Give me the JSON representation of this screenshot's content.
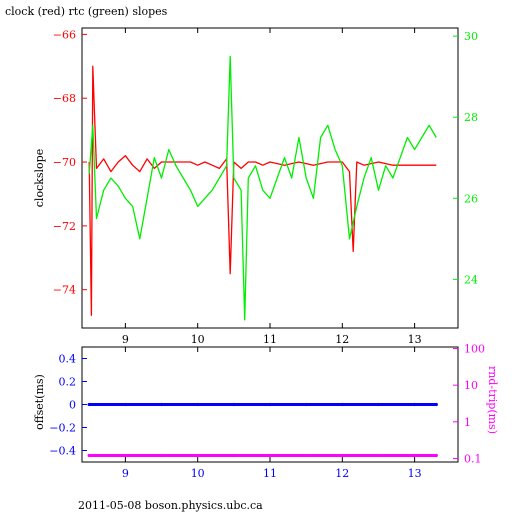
{
  "chart_data": [
    {
      "type": "line",
      "title": "clock (red) rtc (green) slopes",
      "ylabel": "clockslope",
      "xlim": [
        8.4,
        13.6
      ],
      "x_ticks": [
        9,
        10,
        11,
        12,
        13
      ],
      "y_left": {
        "range": [
          -75.2,
          -65.8
        ],
        "ticks": [
          -74,
          -72,
          -70,
          -68,
          -66
        ]
      },
      "y_right": {
        "range": [
          22.8,
          30.2
        ],
        "ticks": [
          24,
          26,
          28,
          30
        ]
      },
      "series": [
        {
          "name": "clock",
          "axis": "left",
          "color": "#ff0000",
          "x": [
            8.5,
            8.53,
            8.55,
            8.6,
            8.7,
            8.8,
            8.9,
            9.0,
            9.1,
            9.2,
            9.3,
            9.4,
            9.5,
            9.6,
            9.7,
            9.8,
            9.9,
            10.0,
            10.1,
            10.2,
            10.3,
            10.4,
            10.45,
            10.5,
            10.6,
            10.7,
            10.8,
            10.9,
            11.0,
            11.2,
            11.4,
            11.6,
            11.8,
            12.0,
            12.1,
            12.15,
            12.2,
            12.3,
            12.5,
            12.7,
            12.9,
            13.1,
            13.3
          ],
          "y": [
            -70.0,
            -74.8,
            -67.0,
            -70.2,
            -69.9,
            -70.3,
            -70.0,
            -69.8,
            -70.1,
            -70.3,
            -69.9,
            -70.2,
            -70.0,
            -70.0,
            -70.0,
            -70.0,
            -70.0,
            -70.1,
            -70.0,
            -70.1,
            -70.2,
            -69.9,
            -73.5,
            -70.0,
            -70.2,
            -70.0,
            -70.0,
            -70.1,
            -70.0,
            -70.1,
            -70.0,
            -70.1,
            -70.0,
            -70.0,
            -70.3,
            -72.8,
            -70.0,
            -70.1,
            -70.0,
            -70.1,
            -70.1,
            -70.1,
            -70.1
          ]
        },
        {
          "name": "rtc",
          "axis": "right",
          "color": "#00ee00",
          "x": [
            8.5,
            8.55,
            8.6,
            8.7,
            8.8,
            8.9,
            9.0,
            9.1,
            9.2,
            9.3,
            9.4,
            9.5,
            9.6,
            9.7,
            9.8,
            9.9,
            10.0,
            10.1,
            10.2,
            10.3,
            10.4,
            10.45,
            10.5,
            10.6,
            10.65,
            10.7,
            10.8,
            10.9,
            11.0,
            11.1,
            11.2,
            11.3,
            11.4,
            11.5,
            11.6,
            11.7,
            11.8,
            11.9,
            12.0,
            12.1,
            12.2,
            12.3,
            12.4,
            12.5,
            12.6,
            12.7,
            12.8,
            12.9,
            13.0,
            13.1,
            13.2,
            13.3
          ],
          "y": [
            26.6,
            27.8,
            25.5,
            26.2,
            26.5,
            26.3,
            26.0,
            25.8,
            25.0,
            26.0,
            27.0,
            26.5,
            27.2,
            26.8,
            26.5,
            26.2,
            25.8,
            26.0,
            26.2,
            26.5,
            26.8,
            29.5,
            26.5,
            26.2,
            23.0,
            26.5,
            26.8,
            26.2,
            26.0,
            26.5,
            27.0,
            26.5,
            27.5,
            26.5,
            26.0,
            27.5,
            27.8,
            27.2,
            26.8,
            25.0,
            25.8,
            26.5,
            27.0,
            26.2,
            26.8,
            26.5,
            27.0,
            27.5,
            27.2,
            27.5,
            27.8,
            27.5
          ]
        }
      ]
    },
    {
      "type": "scatter",
      "ylabel": "offset(ms)",
      "y2label": "rnd-trip(ms)",
      "xlim": [
        8.4,
        13.6
      ],
      "x_ticks": [
        9,
        10,
        11,
        12,
        13
      ],
      "y_left": {
        "range": [
          -0.5,
          0.5
        ],
        "ticks": [
          0.4,
          0.2,
          0,
          -0.2,
          -0.4
        ]
      },
      "y_right": {
        "scale": "log",
        "range": [
          0.08,
          110
        ],
        "ticks": [
          100,
          10,
          1,
          0.1
        ],
        "tick_labels": [
          "100",
          "10",
          "1",
          "0.1"
        ]
      },
      "series": [
        {
          "name": "offset",
          "axis": "left",
          "color": "#0000ff",
          "x": [
            8.5,
            9.0,
            9.5,
            10.0,
            10.5,
            11.0,
            11.5,
            12.0,
            12.5,
            13.0,
            13.3
          ],
          "y": [
            0.0,
            0.0,
            0.0,
            0.0,
            0.0,
            0.0,
            0.0,
            0.0,
            0.0,
            0.0,
            0.0
          ]
        },
        {
          "name": "rnd-trip",
          "axis": "right",
          "color": "#ff00ff",
          "x": [
            8.5,
            9.0,
            9.5,
            10.0,
            10.5,
            11.0,
            11.5,
            12.0,
            12.5,
            13.0,
            13.3
          ],
          "y": [
            0.12,
            0.12,
            0.12,
            0.12,
            0.12,
            0.12,
            0.12,
            0.12,
            0.12,
            0.12,
            0.12
          ]
        }
      ]
    }
  ],
  "footer_text": "2011-05-08 boson.physics.ubc.ca"
}
